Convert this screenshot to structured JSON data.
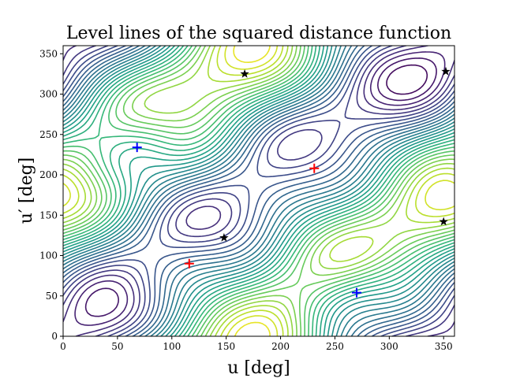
{
  "chart_data": {
    "type": "contour",
    "title": "Level lines of the squared distance function",
    "xlabel": "u [deg]",
    "ylabel": "u′ [deg]",
    "xlim": [
      0,
      360
    ],
    "ylim": [
      0,
      360
    ],
    "xticks": [
      0,
      50,
      100,
      150,
      200,
      250,
      300,
      350
    ],
    "yticks": [
      0,
      50,
      100,
      150,
      200,
      250,
      300,
      350
    ],
    "grid": false,
    "colormap": "viridis",
    "markers": [
      {
        "kind": "minimum",
        "symbol": "+",
        "color": "#0000ff",
        "points": [
          [
            68,
            234
          ],
          [
            270,
            54
          ]
        ]
      },
      {
        "kind": "maximum",
        "symbol": "+",
        "color": "#ff0000",
        "points": [
          [
            116,
            90
          ],
          [
            231,
            208
          ]
        ]
      },
      {
        "kind": "saddle",
        "symbol": "star",
        "color": "#000000",
        "points": [
          [
            167,
            325
          ],
          [
            148,
            122
          ],
          [
            352,
            328
          ],
          [
            350,
            142
          ]
        ]
      }
    ]
  }
}
